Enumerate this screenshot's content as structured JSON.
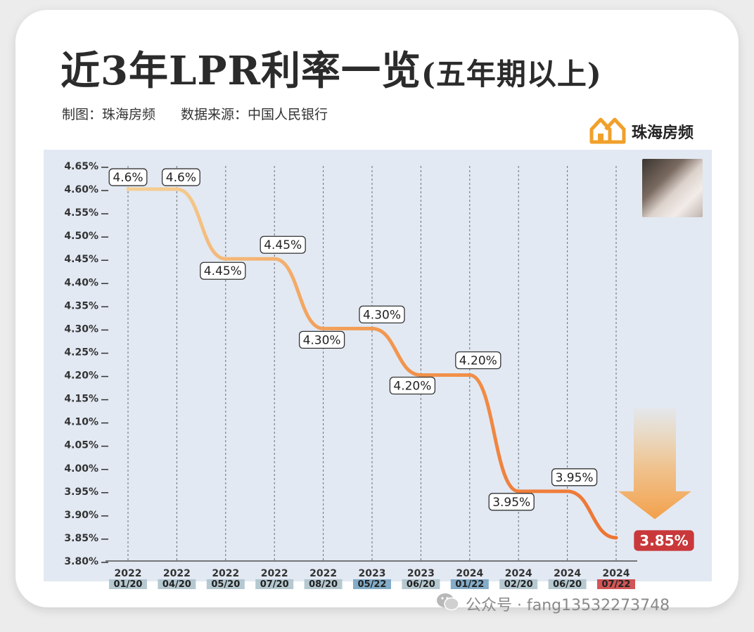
{
  "header": {
    "title": "近3年LPR利率一览",
    "title_suffix": "(五年期以上)",
    "credit_maker": "制图：珠海房频",
    "credit_source": "数据来源：中国人民银行",
    "brand_name": "珠海房频"
  },
  "footer": {
    "text": "公众号 · fang13532273748"
  },
  "colors": {
    "line_start": "#f5c98a",
    "line_end": "#ee7d33",
    "highlight": "#c9383a",
    "date_tag": "#a9bfc9",
    "date_tag_mid": "#6f9fc0"
  },
  "chart_data": {
    "type": "line",
    "title": "近3年LPR利率一览(五年期以上)",
    "xlabel": "",
    "ylabel": "",
    "ylim": [
      3.8,
      4.65
    ],
    "y_ticks": [
      "4.65%",
      "4.60%",
      "4.55%",
      "4.50%",
      "4.45%",
      "4.40%",
      "4.35%",
      "4.30%",
      "4.25%",
      "4.20%",
      "4.15%",
      "4.10%",
      "4.05%",
      "4.00%",
      "3.95%",
      "3.90%",
      "3.85%",
      "3.80%"
    ],
    "x_years": [
      "2022",
      "2022",
      "2022",
      "2022",
      "2022",
      "2023",
      "2023",
      "2024",
      "2024",
      "2024",
      "2024"
    ],
    "x_dates": [
      "01/20",
      "04/20",
      "05/20",
      "07/20",
      "08/20",
      "05/22",
      "06/20",
      "01/22",
      "02/20",
      "06/20",
      "07/22"
    ],
    "values": [
      4.6,
      4.6,
      4.45,
      4.45,
      4.3,
      4.3,
      4.2,
      4.2,
      3.95,
      3.95,
      3.85
    ],
    "data_labels": [
      "4.6%",
      "4.6%",
      "4.45%",
      "4.45%",
      "4.30%",
      "4.30%",
      "4.20%",
      "4.20%",
      "3.95%",
      "3.95%",
      "3.85%"
    ],
    "grid": "vertical dashed lines",
    "annotation": "downward arrow at 2024 07/22"
  }
}
